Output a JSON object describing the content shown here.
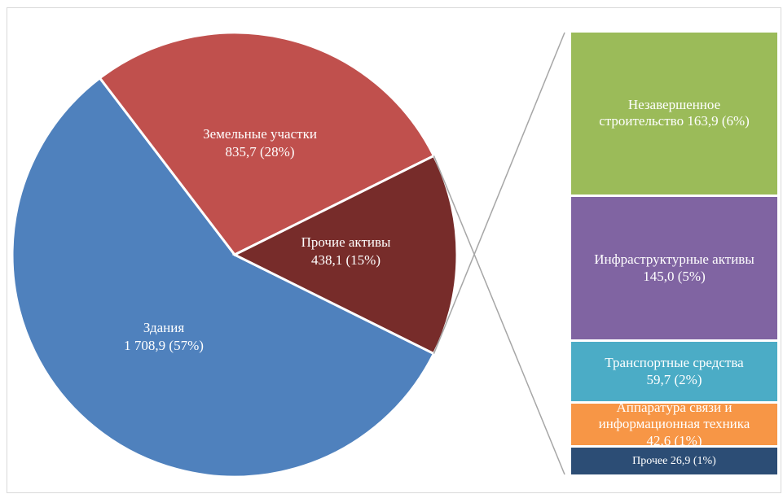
{
  "chart_data": {
    "type": "pie-of-bar",
    "categories": [
      "Здания",
      "Земельные участки",
      "Прочие активы"
    ],
    "values": [
      1708.9,
      835.7,
      438.1
    ],
    "value_labels": [
      "1 708,9 (57%)",
      "835,7 (28%)",
      "438,1 (15%)"
    ],
    "colors": [
      "#4f81bd",
      "#c0504d",
      "#772c2a"
    ],
    "breakdown": {
      "categories": [
        "Незавершенное строительство",
        "Инфраструктурные активы",
        "Транспортные средства",
        "Аппаратура связи и информационная техника",
        "Прочее"
      ],
      "values": [
        163.9,
        145.0,
        59.7,
        42.6,
        26.9
      ],
      "value_labels": [
        "163,9 (6%)",
        "145,0 (5%)",
        "59,7 (2%)",
        "42,6 (1%)",
        "26,9 (1%)"
      ],
      "colors": [
        "#9bbb59",
        "#8064a2",
        "#4bacc6",
        "#f79646",
        "#2c4d75"
      ]
    }
  }
}
